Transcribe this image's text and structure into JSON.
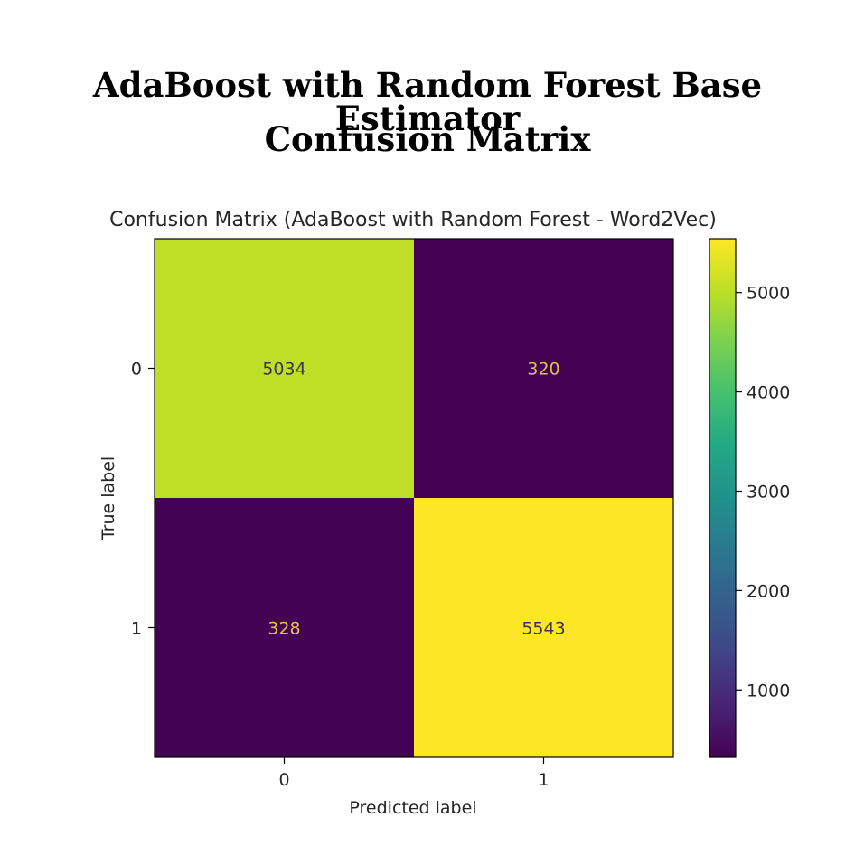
{
  "page": {
    "heading_line1": "AdaBoost with Random Forest Base Estimator",
    "heading_line2": "Confusion Matrix"
  },
  "chart_data": {
    "type": "heatmap",
    "title": "Confusion Matrix (AdaBoost with Random Forest - Word2Vec)",
    "xlabel": "Predicted label",
    "ylabel": "True label",
    "x_categories": [
      "0",
      "1"
    ],
    "y_categories": [
      "0",
      "1"
    ],
    "values": [
      [
        5034,
        320
      ],
      [
        328,
        5543
      ]
    ],
    "colormap": "viridis",
    "colorbar": {
      "range": [
        320,
        5543
      ],
      "ticks": [
        1000,
        2000,
        3000,
        4000,
        5000
      ],
      "tick_labels": [
        "1000",
        "2000",
        "3000",
        "4000",
        "5000"
      ]
    },
    "grid": false
  }
}
